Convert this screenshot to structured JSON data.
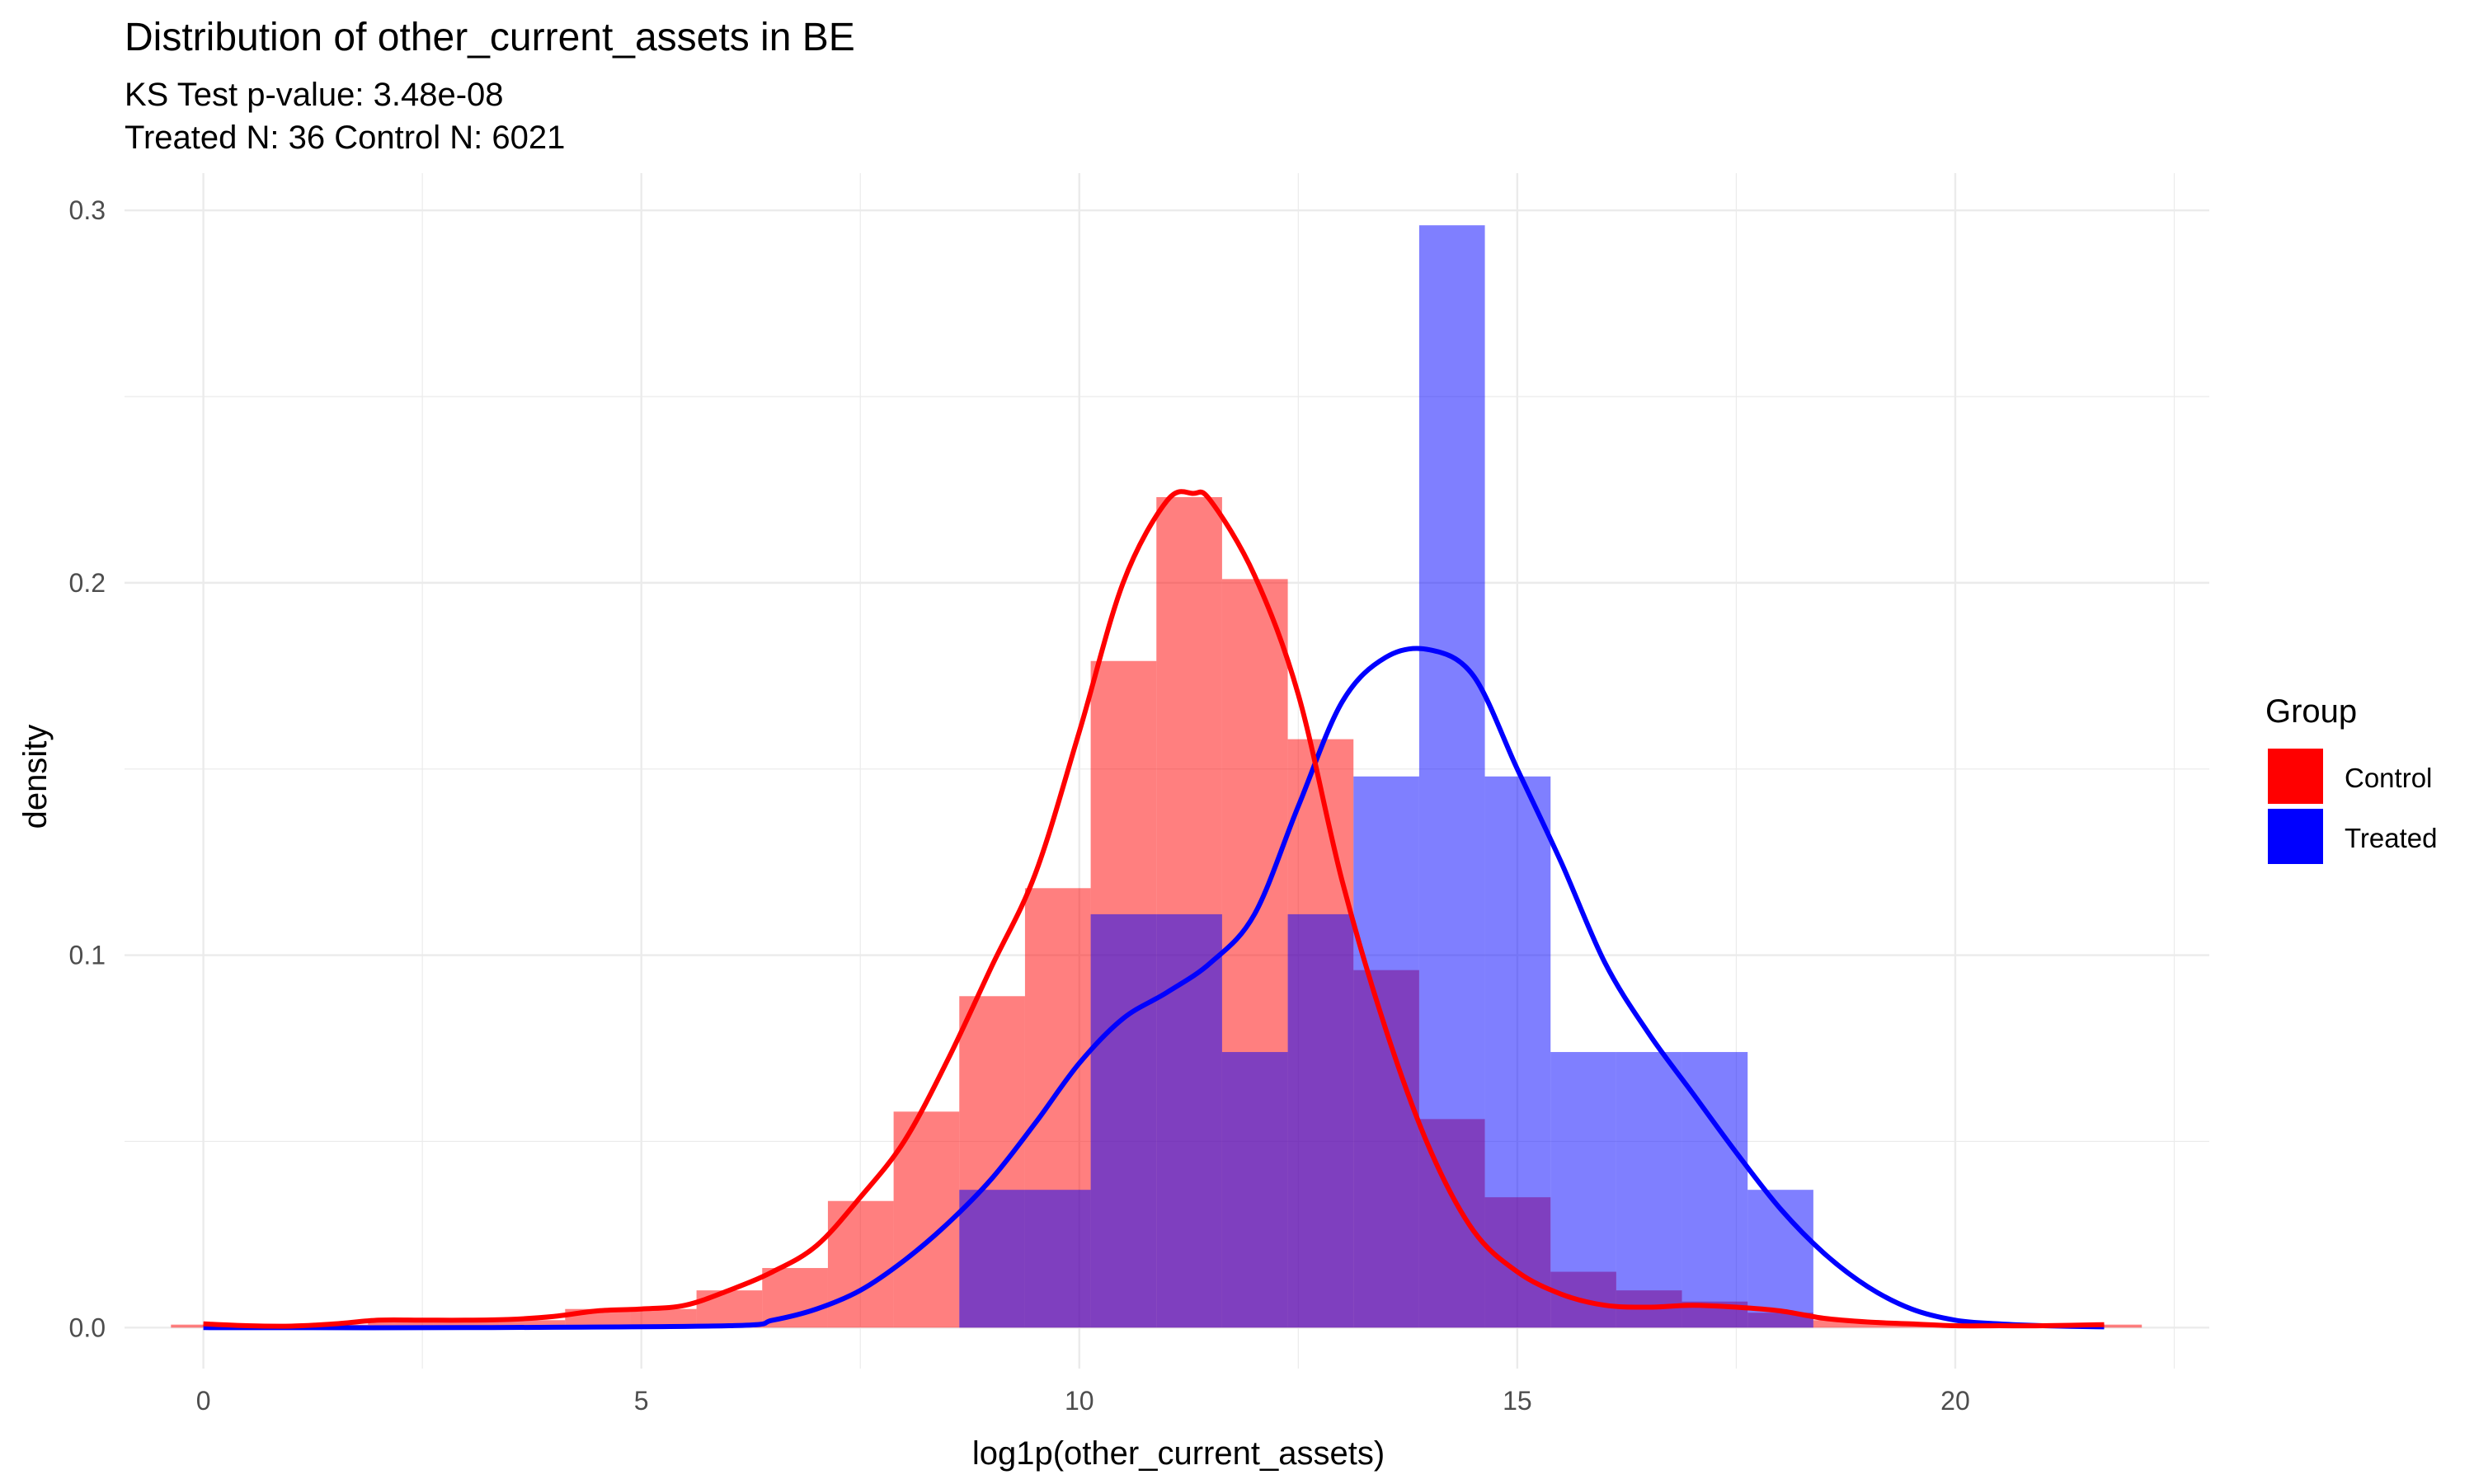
{
  "chart_data": {
    "type": "histogram",
    "title": "Distribution of other_current_assets in BE",
    "subtitle_lines": [
      "KS Test p-value: 3.48e-08",
      "Treated N: 36 Control N: 6021"
    ],
    "xlabel": "log1p(other_current_assets)",
    "ylabel": "density",
    "xlim": [
      -0.9,
      22.9
    ],
    "ylim": [
      -0.011,
      0.31
    ],
    "x_ticks": [
      0,
      5,
      10,
      15,
      20
    ],
    "x_tick_labels": [
      "0",
      "5",
      "10",
      "15",
      "20"
    ],
    "y_ticks": [
      0.0,
      0.1,
      0.2,
      0.3
    ],
    "y_tick_labels": [
      "0.0",
      "0.1",
      "0.2",
      "0.3"
    ],
    "grid": true,
    "legend": {
      "title": "Group",
      "position": "right",
      "entries": [
        "Control",
        "Treated"
      ]
    },
    "colors": {
      "control": "#ff0000",
      "treated": "#0000ff",
      "grid": "#ebebeb"
    },
    "bin_width": 0.75,
    "series": [
      {
        "name": "Control",
        "bins": [
          {
            "x0": -0.37,
            "x1": 0.38,
            "y": 0.0008
          },
          {
            "x0": 0.38,
            "x1": 1.13,
            "y": 0.0004
          },
          {
            "x0": 1.13,
            "x1": 1.88,
            "y": 0.0008
          },
          {
            "x0": 1.88,
            "x1": 2.63,
            "y": 0.0015
          },
          {
            "x0": 2.63,
            "x1": 3.38,
            "y": 0.0015
          },
          {
            "x0": 3.38,
            "x1": 4.13,
            "y": 0.002
          },
          {
            "x0": 4.13,
            "x1": 4.88,
            "y": 0.005
          },
          {
            "x0": 4.88,
            "x1": 5.63,
            "y": 0.005
          },
          {
            "x0": 5.63,
            "x1": 6.38,
            "y": 0.01
          },
          {
            "x0": 6.38,
            "x1": 7.13,
            "y": 0.016
          },
          {
            "x0": 7.13,
            "x1": 7.88,
            "y": 0.034
          },
          {
            "x0": 7.88,
            "x1": 8.63,
            "y": 0.058
          },
          {
            "x0": 8.63,
            "x1": 9.38,
            "y": 0.089
          },
          {
            "x0": 9.38,
            "x1": 10.13,
            "y": 0.118
          },
          {
            "x0": 10.13,
            "x1": 10.88,
            "y": 0.179
          },
          {
            "x0": 10.88,
            "x1": 11.63,
            "y": 0.223
          },
          {
            "x0": 11.63,
            "x1": 12.38,
            "y": 0.201
          },
          {
            "x0": 12.38,
            "x1": 13.13,
            "y": 0.158
          },
          {
            "x0": 13.13,
            "x1": 13.88,
            "y": 0.096
          },
          {
            "x0": 13.88,
            "x1": 14.63,
            "y": 0.056
          },
          {
            "x0": 14.63,
            "x1": 15.38,
            "y": 0.035
          },
          {
            "x0": 15.38,
            "x1": 16.13,
            "y": 0.015
          },
          {
            "x0": 16.13,
            "x1": 16.88,
            "y": 0.01
          },
          {
            "x0": 16.88,
            "x1": 17.63,
            "y": 0.007
          },
          {
            "x0": 17.63,
            "x1": 18.38,
            "y": 0.004
          },
          {
            "x0": 18.38,
            "x1": 19.13,
            "y": 0.002
          },
          {
            "x0": 19.13,
            "x1": 19.88,
            "y": 0.0008
          },
          {
            "x0": 19.88,
            "x1": 20.63,
            "y": 0.0004
          },
          {
            "x0": 20.63,
            "x1": 21.38,
            "y": 0.0004
          },
          {
            "x0": 21.38,
            "x1": 22.13,
            "y": 0.0008
          }
        ],
        "density": {
          "x": [
            0,
            0.5,
            1,
            1.5,
            2,
            2.5,
            3,
            3.5,
            4,
            4.5,
            5,
            5.5,
            6,
            6.5,
            7,
            7.5,
            8,
            8.5,
            9,
            9.5,
            10,
            10.5,
            11,
            11.3,
            11.5,
            12,
            12.5,
            13,
            13.5,
            14,
            14.5,
            15,
            15.5,
            16,
            16.5,
            17,
            17.5,
            18,
            18.5,
            19,
            19.5,
            20,
            20.5,
            21,
            21.7
          ],
          "y": [
            0.001,
            0.0005,
            0.0004,
            0.001,
            0.002,
            0.002,
            0.002,
            0.0022,
            0.003,
            0.0045,
            0.005,
            0.006,
            0.01,
            0.015,
            0.022,
            0.035,
            0.05,
            0.072,
            0.097,
            0.122,
            0.16,
            0.2,
            0.222,
            0.224,
            0.222,
            0.202,
            0.17,
            0.12,
            0.08,
            0.048,
            0.026,
            0.015,
            0.009,
            0.006,
            0.0055,
            0.006,
            0.0055,
            0.0045,
            0.0025,
            0.0015,
            0.001,
            0.0005,
            0.0005,
            0.0005,
            0.0008
          ]
        }
      },
      {
        "name": "Treated",
        "bins": [
          {
            "x0": 8.63,
            "x1": 9.38,
            "y": 0.037
          },
          {
            "x0": 9.38,
            "x1": 10.13,
            "y": 0.037
          },
          {
            "x0": 10.13,
            "x1": 10.88,
            "y": 0.111
          },
          {
            "x0": 10.88,
            "x1": 11.63,
            "y": 0.111
          },
          {
            "x0": 11.63,
            "x1": 12.38,
            "y": 0.074
          },
          {
            "x0": 12.38,
            "x1": 13.13,
            "y": 0.111
          },
          {
            "x0": 13.13,
            "x1": 13.88,
            "y": 0.148
          },
          {
            "x0": 13.88,
            "x1": 14.63,
            "y": 0.296
          },
          {
            "x0": 14.63,
            "x1": 15.38,
            "y": 0.148
          },
          {
            "x0": 15.38,
            "x1": 16.13,
            "y": 0.074
          },
          {
            "x0": 16.13,
            "x1": 16.88,
            "y": 0.074
          },
          {
            "x0": 16.88,
            "x1": 17.63,
            "y": 0.074
          },
          {
            "x0": 17.63,
            "x1": 18.38,
            "y": 0.037
          }
        ],
        "density": {
          "x": [
            0,
            3,
            6,
            6.5,
            7,
            7.5,
            8,
            8.5,
            9,
            9.5,
            10,
            10.5,
            11,
            11.5,
            12,
            12.5,
            13,
            13.5,
            14,
            14.5,
            15,
            15.5,
            16,
            16.5,
            17,
            17.5,
            18,
            18.5,
            19,
            19.5,
            20,
            20.5,
            21,
            21.7
          ],
          "y": [
            0.0,
            0.0,
            0.0005,
            0.002,
            0.005,
            0.01,
            0.018,
            0.028,
            0.04,
            0.055,
            0.071,
            0.083,
            0.09,
            0.098,
            0.111,
            0.14,
            0.168,
            0.18,
            0.182,
            0.175,
            0.15,
            0.125,
            0.098,
            0.079,
            0.063,
            0.047,
            0.032,
            0.02,
            0.011,
            0.005,
            0.002,
            0.001,
            0.0005,
            0.0002
          ]
        }
      }
    ]
  }
}
